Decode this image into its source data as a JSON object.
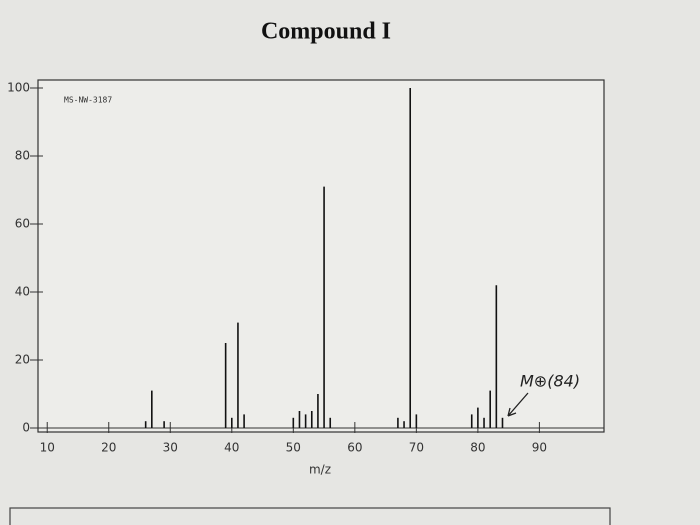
{
  "chart_data": {
    "type": "stem",
    "title": "Compound I",
    "label": "MS-NW-3187",
    "annotation": "M⊕(84)",
    "x_label": "m/z",
    "x": [
      26,
      27,
      29,
      39,
      40,
      41,
      42,
      50,
      51,
      52,
      53,
      54,
      55,
      56,
      67,
      68,
      69,
      70,
      79,
      80,
      81,
      82,
      83,
      84
    ],
    "values": [
      2,
      11,
      2,
      25,
      3,
      31,
      4,
      3,
      5,
      4,
      5,
      10,
      71,
      3,
      3,
      2,
      100,
      4,
      4,
      6,
      3,
      11,
      42,
      3
    ],
    "color": "#111111",
    "xlim": [
      8.5,
      100.5
    ],
    "xticks": [
      10,
      20,
      30,
      40,
      50,
      60,
      70,
      80,
      90
    ],
    "ylim": [
      0,
      100
    ],
    "yticks": [
      0,
      20,
      40,
      60,
      80,
      100
    ]
  }
}
